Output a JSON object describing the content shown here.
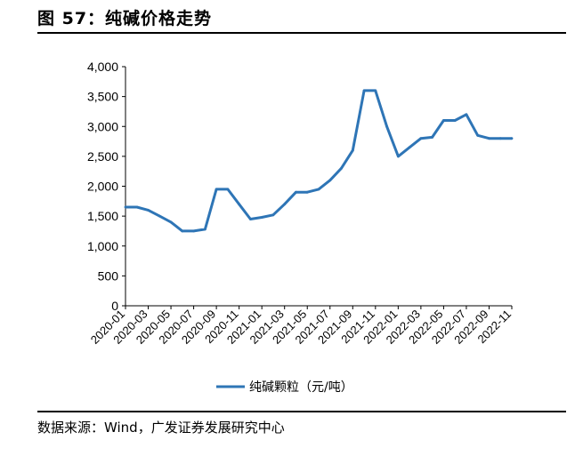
{
  "figure": {
    "title": "图 57：纯碱价格走势",
    "source": "数据来源：Wind，广发证券发展研究中心"
  },
  "colors": {
    "series": "#2e75b6",
    "axis": "#000000"
  },
  "chart_data": {
    "type": "line",
    "title": "",
    "xlabel": "",
    "ylabel": "",
    "ylim": [
      0,
      4000
    ],
    "yticks": [
      "0",
      "500",
      "1,000",
      "1,500",
      "2,000",
      "2,500",
      "3,000",
      "3,500",
      "4,000"
    ],
    "xticks": [
      "2020-01",
      "2020-03",
      "2020-05",
      "2020-07",
      "2020-09",
      "2020-11",
      "2021-01",
      "2021-03",
      "2021-05",
      "2021-07",
      "2021-09",
      "2021-11",
      "2022-01",
      "2022-03",
      "2022-05",
      "2022-07",
      "2022-09",
      "2022-11"
    ],
    "grid": false,
    "legend_position": "bottom",
    "series": [
      {
        "name": "纯碱颗粒（元/吨）",
        "x": [
          "2020-01",
          "2020-02",
          "2020-03",
          "2020-04",
          "2020-05",
          "2020-06",
          "2020-07",
          "2020-08",
          "2020-09",
          "2020-10",
          "2020-11",
          "2020-12",
          "2021-01",
          "2021-02",
          "2021-03",
          "2021-04",
          "2021-05",
          "2021-06",
          "2021-07",
          "2021-08",
          "2021-09",
          "2021-10",
          "2021-11",
          "2021-12",
          "2022-01",
          "2022-02",
          "2022-03",
          "2022-04",
          "2022-05",
          "2022-06",
          "2022-07",
          "2022-08",
          "2022-09",
          "2022-10",
          "2022-11"
        ],
        "values": [
          1650,
          1650,
          1600,
          1500,
          1400,
          1250,
          1250,
          1280,
          1950,
          1950,
          1700,
          1450,
          1480,
          1520,
          1700,
          1900,
          1900,
          1950,
          2100,
          2300,
          2600,
          3600,
          3600,
          3000,
          2500,
          2650,
          2800,
          2820,
          3100,
          3100,
          3200,
          2850,
          2800,
          2800,
          2800
        ]
      }
    ]
  }
}
